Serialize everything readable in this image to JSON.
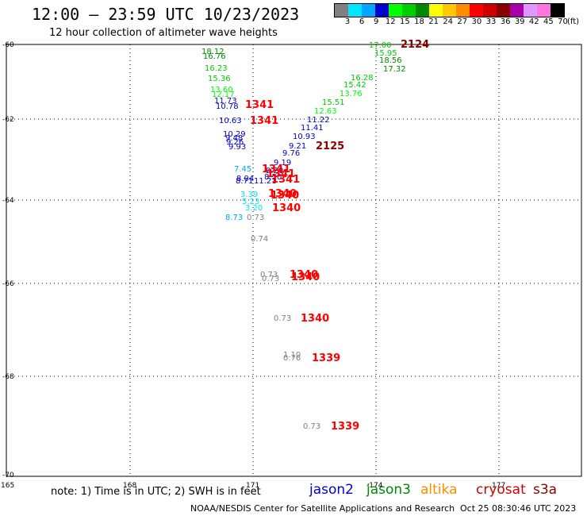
{
  "header": {
    "title": "12:00 – 23:59 UTC 10/23/2023",
    "subtitle": "12 hour collection of altimeter wave heights"
  },
  "legend": {
    "colors": [
      "#808080",
      "#00e5ff",
      "#00a6ff",
      "#0000cc",
      "#00ff00",
      "#00cc00",
      "#008800",
      "#ffff00",
      "#ffc800",
      "#ff8c00",
      "#ff0000",
      "#cc0000",
      "#880000",
      "#aa00aa",
      "#dd99ff",
      "#ff77dd",
      "#000000"
    ],
    "labels": [
      "3",
      "6",
      "9",
      "12",
      "15",
      "18",
      "21",
      "24",
      "27",
      "30",
      "33",
      "36",
      "39",
      "42",
      "45",
      "70"
    ],
    "unit": "(ft)"
  },
  "axes": {
    "lat_labels": [
      "-60",
      "-62",
      "-64",
      "-66",
      "-68",
      "-70"
    ],
    "lon_labels": [
      "165",
      "168",
      "171",
      "-174",
      "177"
    ]
  },
  "map_data": {
    "swh": [
      {
        "text": "18.12",
        "color": "#008800"
      },
      {
        "text": "16.76",
        "color": "#008800"
      },
      {
        "text": "16.23",
        "color": "#00cc00"
      },
      {
        "text": "15.36",
        "color": "#00cc00"
      },
      {
        "text": "13.60",
        "color": "#00ff00"
      },
      {
        "text": "12.17",
        "color": "#00ff00"
      },
      {
        "text": "11.73",
        "color": "#0000cc"
      },
      {
        "text": "10.78",
        "color": "#0000cc"
      },
      {
        "text": "10.63",
        "color": "#0000cc"
      },
      {
        "text": "10.29",
        "color": "#0000cc"
      },
      {
        "text": "9.48",
        "color": "#0000cc"
      },
      {
        "text": "9.26",
        "color": "#0000cc"
      },
      {
        "text": "9.93",
        "color": "#0000cc"
      },
      {
        "text": "7.45",
        "color": "#00a6ff"
      },
      {
        "text": "8.04",
        "color": "#0000cc"
      },
      {
        "text": "8.71",
        "color": "#0000cc"
      },
      {
        "text": "11.21",
        "color": "#0000cc"
      },
      {
        "text": "3.39",
        "color": "#00e5ff"
      },
      {
        "text": "5.23",
        "color": "#00e5ff"
      },
      {
        "text": "3.20",
        "color": "#00e5ff"
      },
      {
        "text": "8.73",
        "color": "#00a6ff"
      },
      {
        "text": "0.73",
        "color": "#808080"
      },
      {
        "text": "17.00",
        "color": "#00cc00"
      },
      {
        "text": "15.95",
        "color": "#00cc00"
      },
      {
        "text": "18.56",
        "color": "#008800"
      },
      {
        "text": "17.32",
        "color": "#008800"
      },
      {
        "text": "16.28",
        "color": "#00cc00"
      },
      {
        "text": "15.42",
        "color": "#00cc00"
      },
      {
        "text": "13.76",
        "color": "#00ff00"
      },
      {
        "text": "15.51",
        "color": "#00cc00"
      },
      {
        "text": "12.63",
        "color": "#00ff00"
      },
      {
        "text": "11.22",
        "color": "#0000cc"
      },
      {
        "text": "11.41",
        "color": "#0000cc"
      },
      {
        "text": "10.93",
        "color": "#0000cc"
      },
      {
        "text": "9.21",
        "color": "#0000cc"
      },
      {
        "text": "9.76",
        "color": "#0000cc"
      },
      {
        "text": "9.19",
        "color": "#0000cc"
      },
      {
        "text": "9.20",
        "color": "#0000cc"
      },
      {
        "text": "8.50",
        "color": "#0000cc"
      },
      {
        "text": "0.74",
        "color": "#808080"
      },
      {
        "text": "0.73",
        "color": "#808080"
      },
      {
        "text": "0.73",
        "color": "#808080"
      },
      {
        "text": "0.73",
        "color": "#808080"
      },
      {
        "text": "1.10",
        "color": "#808080"
      },
      {
        "text": "0.76",
        "color": "#808080"
      },
      {
        "text": "0.73",
        "color": "#808080"
      }
    ],
    "times": [
      {
        "text": "2124",
        "color": "#880000"
      },
      {
        "text": "1341",
        "color": "#ff0000"
      },
      {
        "text": "1341",
        "color": "#ff0000"
      },
      {
        "text": "2125",
        "color": "#880000"
      },
      {
        "text": "1341",
        "color": "#ff0000"
      },
      {
        "text": "1341",
        "color": "#ff0000"
      },
      {
        "text": "1341",
        "color": "#ff0000"
      },
      {
        "text": "1340",
        "color": "#ff0000"
      },
      {
        "text": "1340",
        "color": "#ff0000"
      },
      {
        "text": "1340",
        "color": "#ff0000"
      },
      {
        "text": "1340",
        "color": "#ff0000"
      },
      {
        "text": "1340",
        "color": "#ff0000"
      },
      {
        "text": "1340",
        "color": "#ff0000"
      },
      {
        "text": "1339",
        "color": "#ff0000"
      },
      {
        "text": "1339",
        "color": "#ff0000"
      }
    ]
  },
  "note": "note: 1) Time is in UTC; 2) SWH is in feet",
  "satellites": [
    {
      "name": "jason2",
      "color": "#0000cc"
    },
    {
      "name": "jason3",
      "color": "#008800"
    },
    {
      "name": "altika",
      "color": "#ff8c00"
    },
    {
      "name": "cryosat",
      "color": "#cc0000"
    },
    {
      "name": "s3a",
      "color": "#880000"
    }
  ],
  "footer": {
    "credit": "NOAA/NESDIS Center for Satellite Applications and Research",
    "timestamp": "Oct 25 08:30:46 UTC 2023"
  }
}
